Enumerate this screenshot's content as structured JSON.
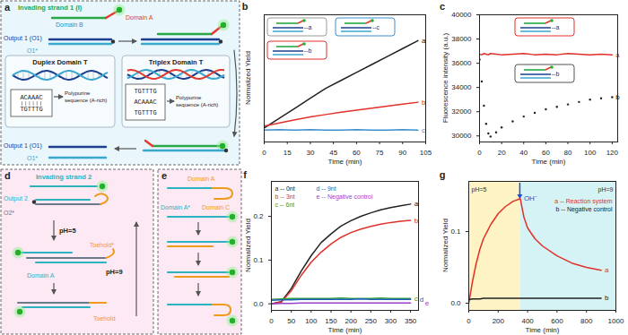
{
  "diagrams": [
    {
      "panel_label": "a",
      "invading_strand": "Invading strand 1 (I)",
      "domain_b": "Domain B",
      "domain_a": "Domain A",
      "output": "Output 1 (O1)",
      "output_complement": "O1*",
      "duplex_title": "Duplex Domain T",
      "triplex_title": "Triplex Domain T",
      "purine_strand": "ACAAAC",
      "pyrimidine_strand": "TGTTTG",
      "purine_note": "Polypurine sequence (A-rich)"
    },
    {
      "panel_label": "d",
      "invading_strand": "Invading strand 2",
      "output": "Output 2",
      "output_complement": "O2*",
      "domain_a": "Domain A",
      "toehold_complement": "Toehold*",
      "toehold": "Toehold",
      "acid_step": "pH=5",
      "base_step": "pH=9"
    },
    {
      "panel_label": "e",
      "domain_a_complement": "Domain A*",
      "domain_a": "Domain A",
      "domain_c": "Domain C"
    }
  ],
  "chart_data": [
    {
      "panel_label": "b",
      "type": "line",
      "xlabel": "Time (min)",
      "ylabel": "Normalized Yield",
      "x": [
        0,
        10,
        20,
        30,
        40,
        50,
        60,
        70,
        80,
        90,
        100
      ],
      "series": [
        {
          "name": "a",
          "end_label": "a",
          "color": "#222222",
          "values": [
            0.075,
            0.1,
            0.125,
            0.15,
            0.175,
            0.195,
            0.215,
            0.235,
            0.255,
            0.275,
            0.295
          ]
        },
        {
          "name": "b",
          "end_label": "b",
          "color": "#e0302a",
          "values": [
            0.08,
            0.088,
            0.096,
            0.103,
            0.109,
            0.115,
            0.12,
            0.125,
            0.13,
            0.135,
            0.14
          ]
        },
        {
          "name": "c",
          "end_label": "c",
          "color": "#3a8fd0",
          "values": [
            0.07,
            0.071,
            0.07,
            0.071,
            0.07,
            0.07,
            0.071,
            0.07,
            0.07,
            0.071,
            0.07
          ]
        }
      ],
      "xlim": [
        0,
        105
      ],
      "ylim": [
        0.04,
        0.36
      ],
      "xticks": [
        0,
        15,
        30,
        45,
        60,
        75,
        90,
        105
      ],
      "yticks": [],
      "tick_labels": "x",
      "insets": [
        {
          "label": "--a",
          "color": "#9a9a9a"
        },
        {
          "label": "--b",
          "color": "#e0302a"
        },
        {
          "label": "--c",
          "color": "#3a8fd0"
        }
      ]
    },
    {
      "panel_label": "c",
      "type": "line",
      "xlabel": "Time (min)",
      "ylabel": "Fluorescence intensity (a.u.)",
      "x": [
        0,
        2,
        4,
        6,
        8,
        10,
        15,
        20,
        30,
        40,
        50,
        60,
        70,
        80,
        90,
        100,
        110,
        120
      ],
      "series": [
        {
          "name": "a",
          "end_label": "a",
          "color": "#e0302a",
          "values": [
            36750,
            36700,
            36800,
            36750,
            36700,
            36800,
            36750,
            36700,
            36750,
            36800,
            36700,
            36750,
            36700,
            36800,
            36750,
            36700,
            36750,
            36700
          ]
        },
        {
          "name": "b",
          "end_label": "b",
          "color": "#222222",
          "marker": "dot",
          "values": [
            36300,
            34500,
            32500,
            31000,
            30200,
            29950,
            30300,
            30700,
            31200,
            31600,
            31900,
            32200,
            32400,
            32600,
            32800,
            33000,
            33100,
            33200
          ]
        }
      ],
      "xlim": [
        0,
        125
      ],
      "ylim": [
        29500,
        40000
      ],
      "xticks": [
        0,
        20,
        40,
        60,
        80,
        100,
        120
      ],
      "yticks": [
        30000,
        32000,
        34000,
        36000,
        38000,
        40000
      ],
      "insets": [
        {
          "label": "--a",
          "color": "#e0302a"
        },
        {
          "label": "--b",
          "color": "#555555"
        }
      ]
    },
    {
      "panel_label": "f",
      "type": "line",
      "xlabel": "Time (min)",
      "ylabel": "Normalized Yield",
      "x": [
        0,
        25,
        50,
        75,
        100,
        125,
        150,
        175,
        200,
        225,
        250,
        275,
        300,
        325,
        350
      ],
      "series": [
        {
          "name": "a -- 0nt",
          "end_label": "a",
          "color": "#222222",
          "values": [
            0,
            0.005,
            0.035,
            0.075,
            0.11,
            0.14,
            0.16,
            0.178,
            0.19,
            0.2,
            0.208,
            0.215,
            0.22,
            0.224,
            0.228
          ]
        },
        {
          "name": "b -- 3nt",
          "end_label": "b",
          "color": "#e0302a",
          "values": [
            0,
            0.004,
            0.03,
            0.065,
            0.095,
            0.118,
            0.137,
            0.152,
            0.163,
            0.171,
            0.177,
            0.182,
            0.186,
            0.189,
            0.191
          ]
        },
        {
          "name": "c -- 6nt",
          "end_label": "c",
          "color": "#2ca02c",
          "values": [
            0.01,
            0.011,
            0.012,
            0.012,
            0.012,
            0.012,
            0.012,
            0.013,
            0.012,
            0.012,
            0.012,
            0.013,
            0.012,
            0.012,
            0.012
          ]
        },
        {
          "name": "d -- 9nt",
          "end_label": "d",
          "color": "#1f5fbf",
          "values": [
            0.008,
            0.009,
            0.009,
            0.01,
            0.01,
            0.01,
            0.01,
            0.01,
            0.01,
            0.011,
            0.01,
            0.01,
            0.01,
            0.01,
            0.01
          ]
        },
        {
          "name": "e -- Negative control",
          "end_label": "e",
          "color": "#9a3fd0",
          "values": [
            0,
            0.001,
            0.001,
            0.002,
            0.002,
            0.002,
            0.002,
            0.002,
            0.002,
            0.002,
            0.002,
            0.002,
            0.002,
            0.002,
            0.002
          ]
        }
      ],
      "xlim": [
        0,
        370
      ],
      "ylim": [
        -0.015,
        0.28
      ],
      "xticks": [
        0,
        50,
        100,
        150,
        200,
        250,
        300,
        350
      ],
      "yticks": [
        {
          "value": 0,
          "label": "0.0"
        },
        0.1,
        0.2
      ],
      "legend": "top-left"
    },
    {
      "panel_label": "g",
      "type": "line",
      "xlabel": "Time (min)",
      "ylabel": "Normalized Yield",
      "x": [
        0,
        25,
        50,
        75,
        100,
        150,
        200,
        250,
        300,
        350,
        375,
        400,
        450,
        500,
        600,
        700,
        800,
        900
      ],
      "series": [
        {
          "name": "a -- Reaction system",
          "end_label": "a",
          "color": "#e0302a",
          "values": [
            0,
            0.03,
            0.055,
            0.075,
            0.09,
            0.11,
            0.125,
            0.135,
            0.142,
            0.146,
            0.12,
            0.105,
            0.09,
            0.08,
            0.066,
            0.056,
            0.05,
            0.046
          ]
        },
        {
          "name": "b -- Negative control",
          "end_label": "b",
          "color": "#222222",
          "values": [
            0.005,
            0.006,
            0.006,
            0.006,
            0.007,
            0.007,
            0.007,
            0.007,
            0.007,
            0.007,
            0.007,
            0.007,
            0.007,
            0.007,
            0.007,
            0.007,
            0.007,
            0.007
          ]
        }
      ],
      "xlim": [
        0,
        1000
      ],
      "ylim": [
        -0.01,
        0.17
      ],
      "xticks": [
        0,
        200,
        400,
        600,
        800,
        1000
      ],
      "yticks": [
        {
          "value": 0,
          "label": "0.0"
        },
        0.1
      ],
      "legend": "top-right",
      "regions": [
        {
          "from": 0,
          "to": 350,
          "label": "pH=5",
          "color": "#fdf3c4"
        },
        {
          "from": 350,
          "to": 1000,
          "label": "pH=9",
          "color": "#d5f3f5"
        }
      ],
      "annotations": [
        {
          "text": "OH⁻",
          "x": 350
        }
      ]
    }
  ]
}
